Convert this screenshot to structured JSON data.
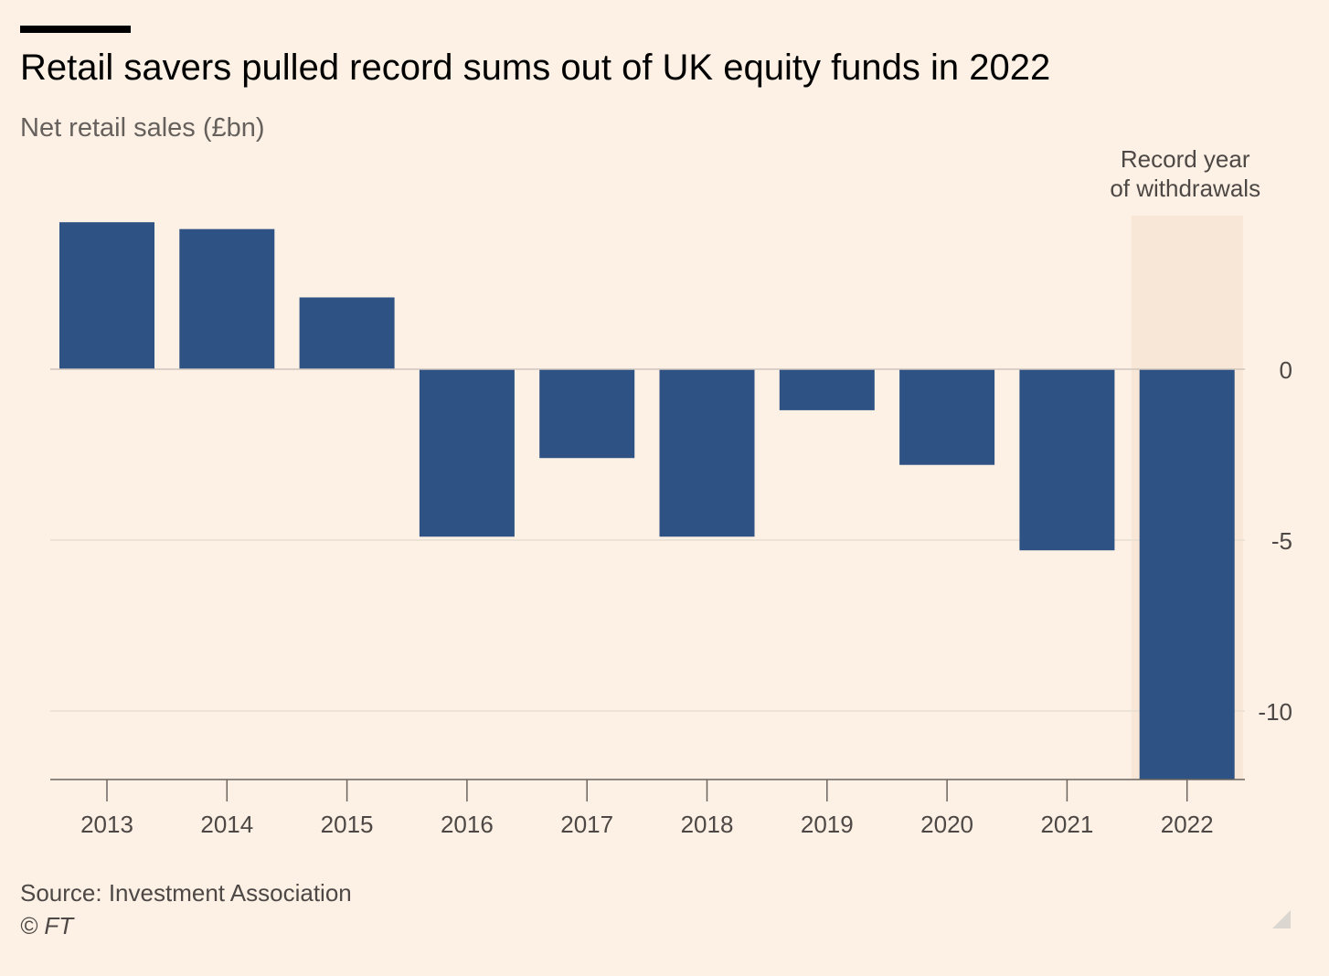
{
  "title": "Retail savers pulled record sums out of UK equity funds in 2022",
  "subtitle": "Net retail sales (£bn)",
  "source": "Source: Investment Association",
  "copyright": "© FT",
  "chart_data": {
    "type": "bar",
    "title": "Retail savers pulled record sums out of UK equity funds in 2022",
    "ylabel": "Net retail sales (£bn)",
    "categories": [
      "2013",
      "2014",
      "2015",
      "2016",
      "2017",
      "2018",
      "2019",
      "2020",
      "2021",
      "2022"
    ],
    "values": [
      4.3,
      4.1,
      2.1,
      -4.9,
      -2.6,
      -4.9,
      -1.2,
      -2.8,
      -5.3,
      -12.0
    ],
    "ylim": [
      -12,
      4.5
    ],
    "yticks": [
      0,
      -5,
      -10
    ],
    "ytick_labels": [
      "0",
      "-5",
      "-10"
    ],
    "y_axis_side": "right",
    "grid": true,
    "bar_color": "#2e5283",
    "highlight": {
      "category": "2022",
      "label_lines": [
        "Record year",
        "of withdrawals"
      ],
      "color": "#f8e6d6"
    }
  }
}
